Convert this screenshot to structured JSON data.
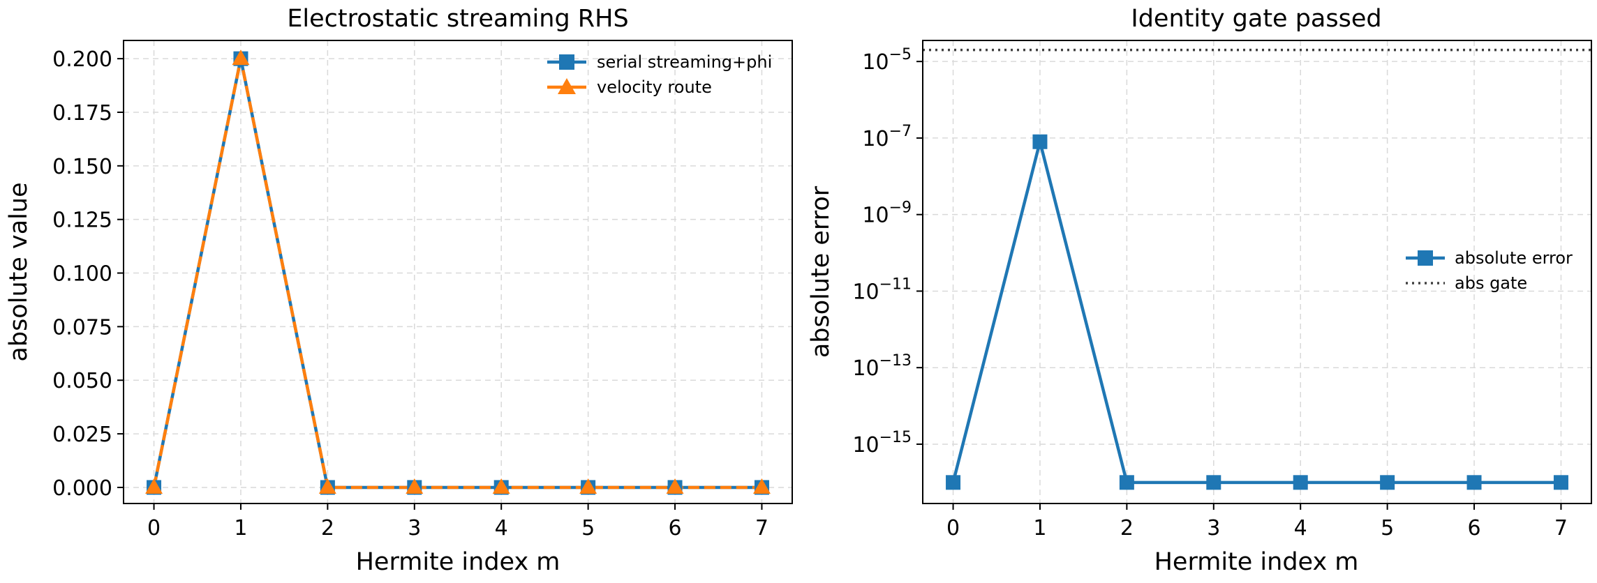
{
  "colors": {
    "series1": "#1f77b4",
    "series2": "#ff7f0e",
    "gate": "#404040"
  },
  "chart_data": [
    {
      "type": "line",
      "title": "Electrostatic streaming RHS",
      "xlabel": "Hermite index m",
      "ylabel": "absolute value",
      "x": [
        0,
        1,
        2,
        3,
        4,
        5,
        6,
        7
      ],
      "xlim": [
        -0.35,
        7.35
      ],
      "ylim": [
        -0.0075,
        0.2085
      ],
      "xticks": [
        "0",
        "1",
        "2",
        "3",
        "4",
        "5",
        "6",
        "7"
      ],
      "yticks": [
        "0.000",
        "0.025",
        "0.050",
        "0.075",
        "0.100",
        "0.125",
        "0.150",
        "0.175",
        "0.200"
      ],
      "grid": true,
      "legend_position": "upper right",
      "series": [
        {
          "name": "serial streaming+phi",
          "marker": "square",
          "linestyle": "solid",
          "values": [
            0,
            0.2,
            0,
            0,
            0,
            0,
            0,
            0
          ]
        },
        {
          "name": "velocity route",
          "marker": "triangle",
          "linestyle": "dashed",
          "values": [
            0,
            0.2,
            0,
            0,
            0,
            0,
            0,
            0
          ]
        }
      ]
    },
    {
      "type": "line",
      "title": "Identity gate passed",
      "xlabel": "Hermite index m",
      "ylabel": "absolute error",
      "yscale": "log",
      "x": [
        0,
        1,
        2,
        3,
        4,
        5,
        6,
        7
      ],
      "xlim": [
        -0.35,
        7.35
      ],
      "ylim_log10": [
        -16.55,
        -4.45
      ],
      "xticks": [
        "0",
        "1",
        "2",
        "3",
        "4",
        "5",
        "6",
        "7"
      ],
      "ytick_exponents": [
        "-5",
        "-7",
        "-9",
        "-11",
        "-13",
        "-15"
      ],
      "ytick_base": "10",
      "grid": true,
      "legend_position": "center right",
      "series": [
        {
          "name": "absolute error",
          "marker": "square",
          "linestyle": "solid",
          "values": [
            1e-16,
            8e-08,
            1e-16,
            1e-16,
            1e-16,
            1e-16,
            1e-16,
            1e-16
          ]
        }
      ],
      "hlines": [
        {
          "name": "abs gate",
          "linestyle": "dotted",
          "value": 2e-05
        }
      ]
    }
  ]
}
